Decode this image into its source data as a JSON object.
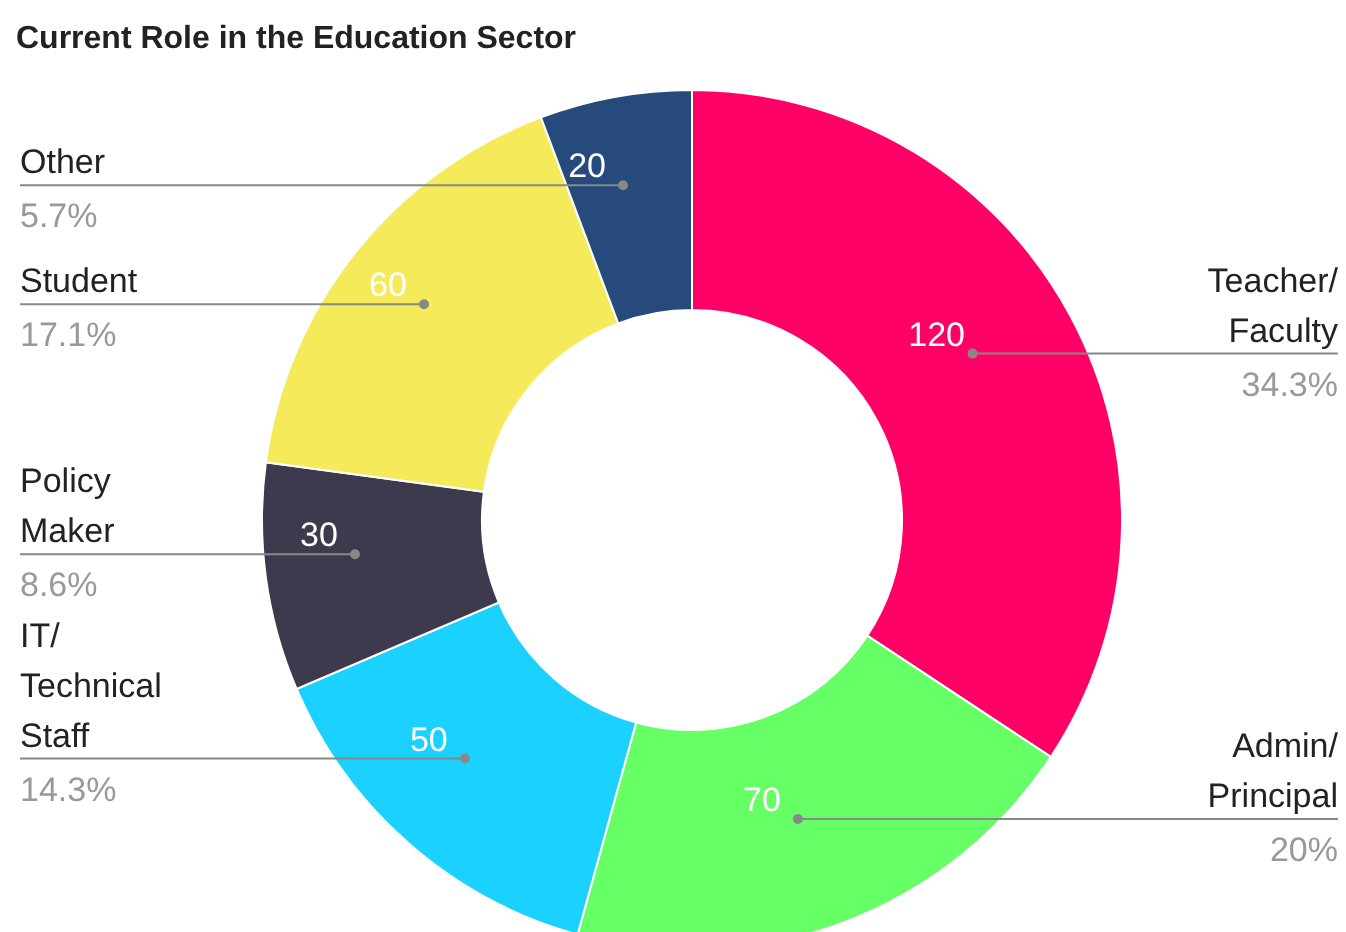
{
  "chart_data": {
    "type": "donut",
    "title": "Current Role in the Education Sector",
    "categories": [
      "Teacher/ Faculty",
      "Admin/ Principal",
      "IT/ Technical Staff",
      "Policy Maker",
      "Student",
      "Other"
    ],
    "values": [
      120,
      70,
      50,
      30,
      60,
      20
    ],
    "colors": [
      "#ff0066",
      "#66ff66",
      "#1ad1ff",
      "#3d3a4d",
      "#f5ea5a",
      "#274a7c"
    ],
    "data_labels": true,
    "annotations": [
      "34.3%",
      "20%",
      "14.3%",
      "8.6%",
      "17.1%",
      "5.7%"
    ]
  }
}
